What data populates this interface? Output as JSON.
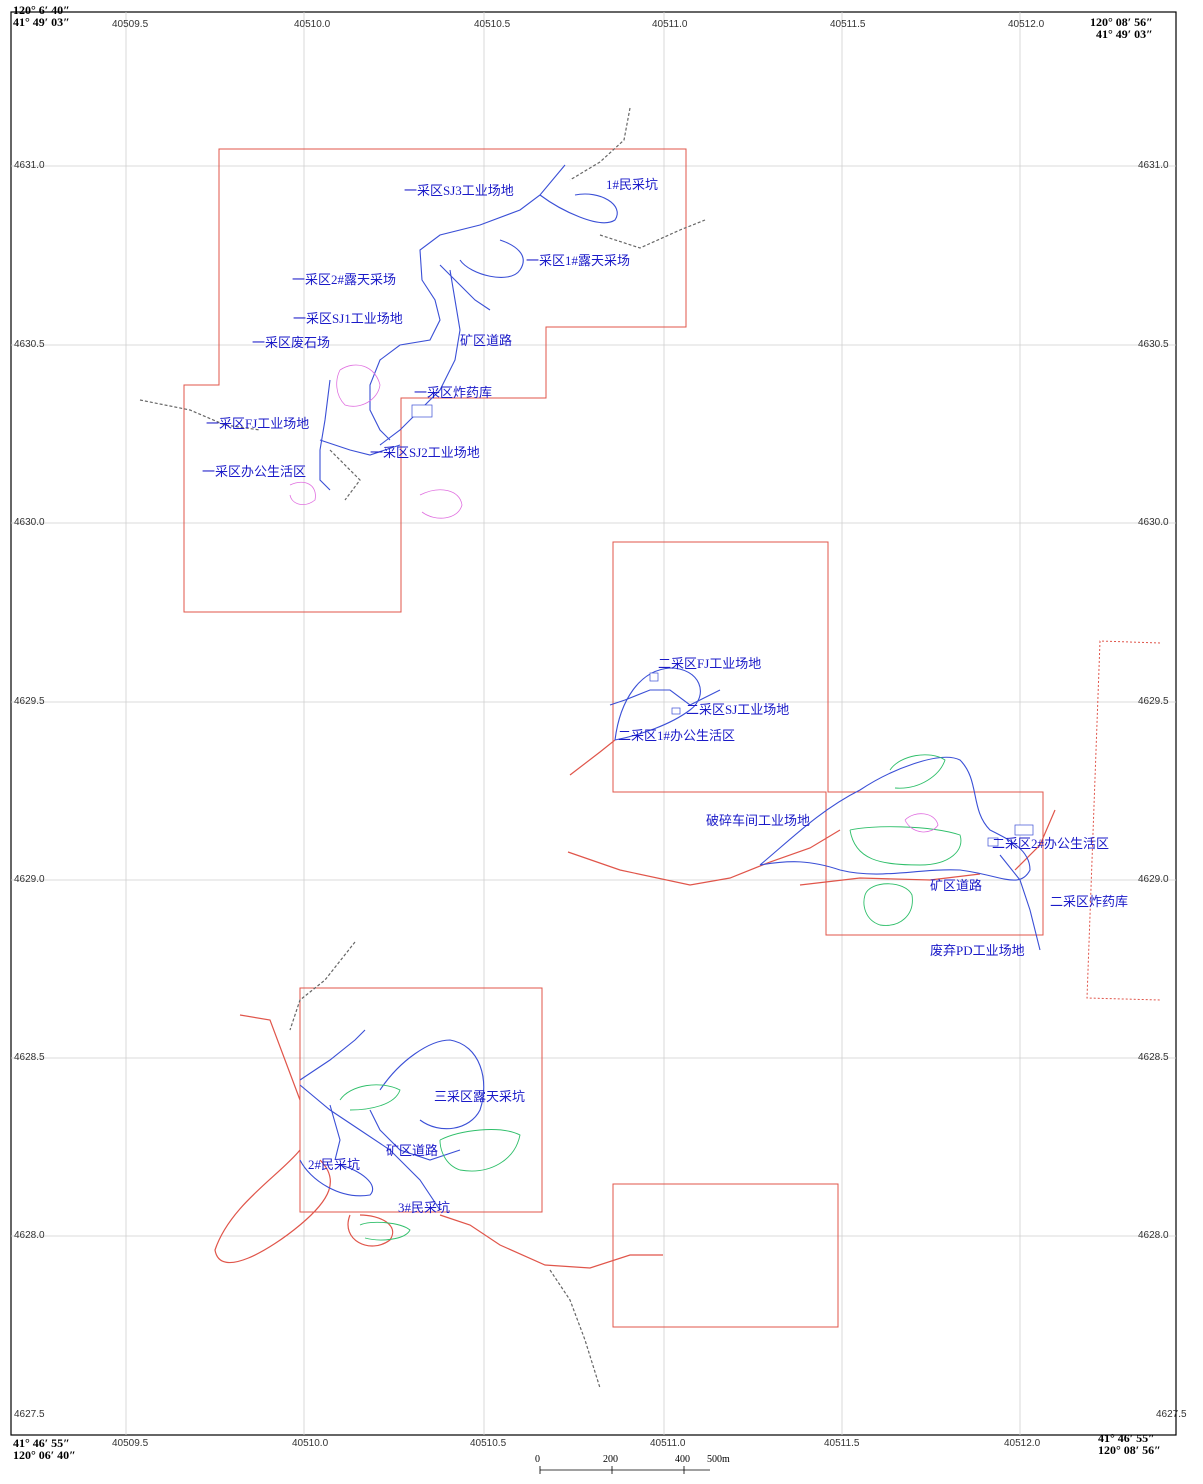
{
  "corners": {
    "top_left": {
      "lon": "120° 6′ 40″",
      "lat": "41° 49′ 03″"
    },
    "top_right": {
      "lon": "120° 08′ 56″",
      "lat": "41° 49′ 03″"
    },
    "bottom_left": {
      "lat": "41° 46′ 55″",
      "lon": "120° 06′ 40″"
    },
    "bottom_right": {
      "lat": "41° 46′ 55″",
      "lon": "120° 08′ 56″"
    }
  },
  "x_ticks": [
    "40509.5",
    "40510.0",
    "40510.5",
    "40511.0",
    "40511.5",
    "40512.0"
  ],
  "y_ticks": [
    "4631.0",
    "4630.5",
    "4630.0",
    "4629.5",
    "4629.0",
    "4628.5",
    "4628.0",
    "4627.5"
  ],
  "labels": {
    "l1": "一采区SJ3工业场地",
    "l2": "1#民采坑",
    "l3": "一采区1#露天采场",
    "l4": "一采区2#露天采场",
    "l5": "一采区SJ1工业场地",
    "l6": "矿区道路",
    "l7": "一采区废石场",
    "l8": "一采区炸药库",
    "l9": "一采区FJ工业场地",
    "l10": "一采区SJ2工业场地",
    "l11": "一采区办公生活区",
    "l12": "二采区FJ工业场地",
    "l13": "二采区SJ工业场地",
    "l14": "二采区1#办公生活区",
    "l15": "破碎车间工业场地",
    "l16": "二采区2#办公生活区",
    "l17": "矿区道路",
    "l18": "二采区炸药库",
    "l19": "废弃PD工业场地",
    "l20": "三采区露天采坑",
    "l21": "矿区道路",
    "l22": "2#民采坑",
    "l23": "3#民采坑"
  },
  "scale_bar": {
    "t0": "0",
    "t1": "200",
    "t2": "400",
    "t3": "500m"
  },
  "colors": {
    "grid": "#cfcfcf",
    "boundary": "#e0554a",
    "road": "#3a4fd6",
    "label": "#1a1ac8",
    "green": "#2fbf6a",
    "pink": "#e070e0",
    "rail": "#666666"
  }
}
